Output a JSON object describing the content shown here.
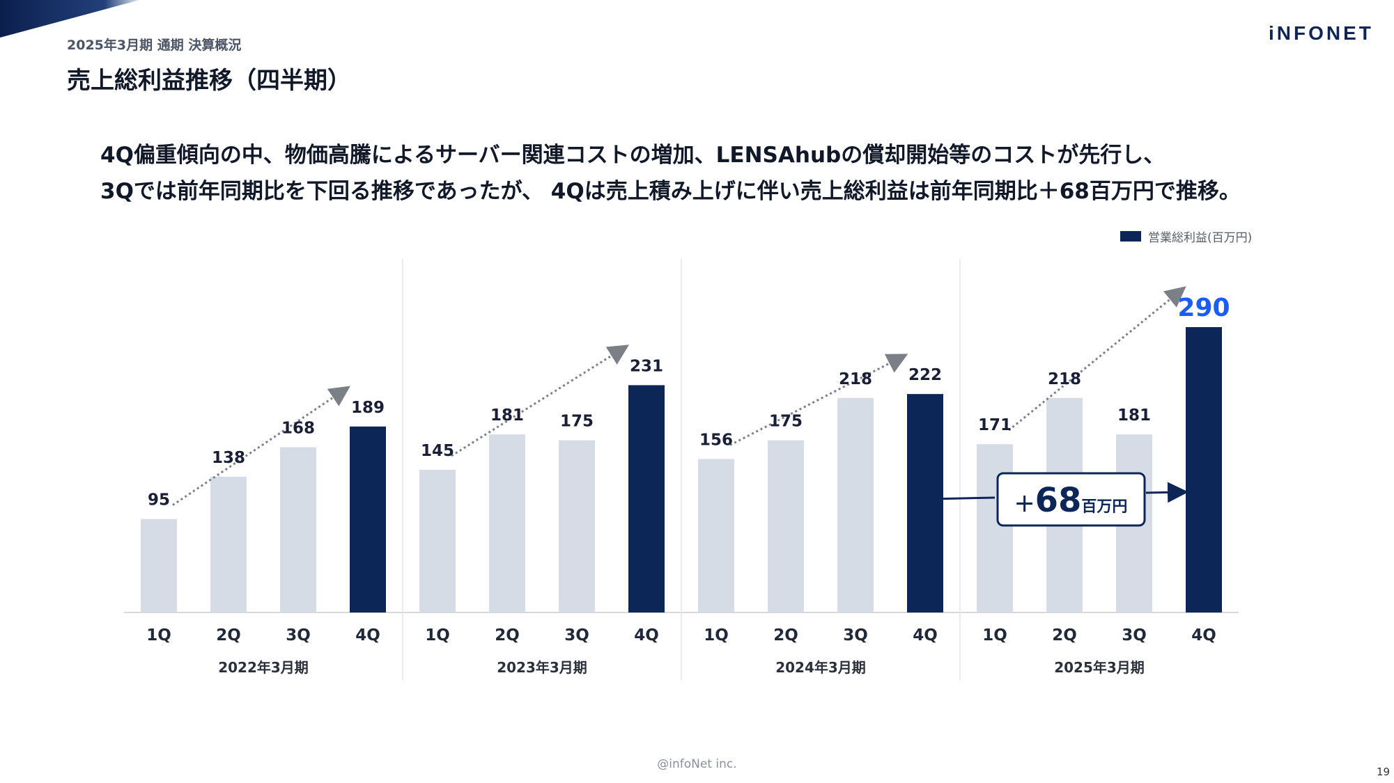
{
  "header": {
    "section": "2025年3月期 通期 決算概況",
    "title": "売上総利益推移（四半期）",
    "logo": "iNFONET"
  },
  "summary": {
    "line1": "4Q偏重傾向の中、物価高騰によるサーバー関連コストの増加、LENSAhubの償却開始等のコストが先行し、",
    "line2": "3Qでは前年同期比を下回る推移であったが、 4Qは売上積み上げに伴い売上総利益は前年同期比＋68百万円で推移。"
  },
  "callout": {
    "plus": "＋",
    "value": "68",
    "unit": "百万円"
  },
  "footer": {
    "copyright": "@infoNet inc.",
    "page": "19"
  },
  "colors": {
    "highlight": "#0c2657",
    "base": "#d5dce6",
    "accent_label": "#1a5cff",
    "label": "#1a1f36",
    "trend_arrow": "#7b7f86"
  },
  "chart_data": {
    "type": "bar",
    "legend": [
      "営業総利益(百万円)"
    ],
    "legend_position": "top-right",
    "ylim": [
      0,
      340
    ],
    "grid": false,
    "groups": [
      {
        "label": "2022年3月期",
        "categories": [
          "1Q",
          "2Q",
          "3Q",
          "4Q"
        ],
        "values": [
          95,
          138,
          168,
          189
        ]
      },
      {
        "label": "2023年3月期",
        "categories": [
          "1Q",
          "2Q",
          "3Q",
          "4Q"
        ],
        "values": [
          145,
          181,
          175,
          231
        ]
      },
      {
        "label": "2024年3月期",
        "categories": [
          "1Q",
          "2Q",
          "3Q",
          "4Q"
        ],
        "values": [
          156,
          175,
          218,
          222
        ]
      },
      {
        "label": "2025年3月期",
        "categories": [
          "1Q",
          "2Q",
          "3Q",
          "4Q"
        ],
        "values": [
          171,
          218,
          181,
          290
        ]
      }
    ],
    "highlighted_quarter": "4Q",
    "emphasized_value": 290
  }
}
